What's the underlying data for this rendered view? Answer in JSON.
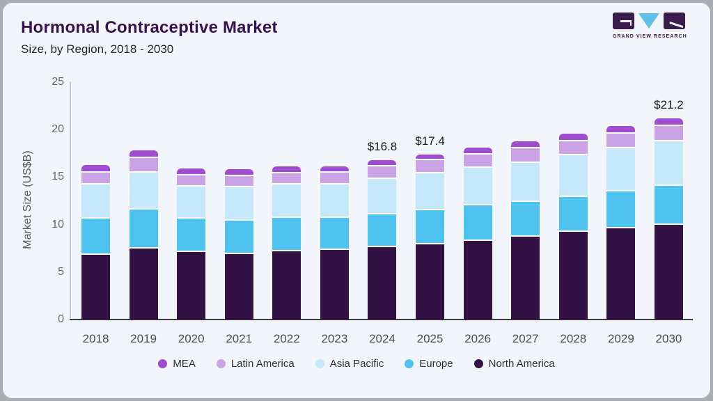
{
  "header": {
    "title": "Hormonal Contraceptive Market",
    "subtitle": "Size, by Region, 2018 - 2030",
    "logo_text": "GRAND VIEW RESEARCH"
  },
  "colors": {
    "card_background": "#f2f6fa",
    "title": "#3a1150",
    "logo_purple": "#3a1b4d",
    "logo_blue": "#5ec1ea",
    "axis_line": "#c6cad0",
    "baseline": "#3b3b42"
  },
  "chart_data": {
    "type": "bar",
    "stacked": true,
    "title": "Hormonal Contraceptive Market",
    "subtitle": "Size, by Region, 2018 - 2030",
    "xlabel": "",
    "ylabel": "Market Size (US$B)",
    "ylim": [
      0,
      25
    ],
    "yticks": [
      0,
      5,
      10,
      15,
      20,
      25
    ],
    "grid": false,
    "legend_position": "bottom",
    "categories": [
      2018,
      2019,
      2020,
      2021,
      2022,
      2023,
      2024,
      2025,
      2026,
      2027,
      2028,
      2029,
      2030
    ],
    "stack_order_bottom_to_top": [
      "North America",
      "Europe",
      "Asia Pacific",
      "Latin America",
      "MEA"
    ],
    "legend_order": [
      "MEA",
      "Latin America",
      "Asia Pacific",
      "Europe",
      "North America"
    ],
    "series": [
      {
        "name": "North America",
        "color": "#321245",
        "values": [
          6.8,
          7.5,
          7.1,
          6.9,
          7.2,
          7.3,
          7.6,
          7.9,
          8.3,
          8.7,
          9.2,
          9.6,
          10.0
        ]
      },
      {
        "name": "Europe",
        "color": "#4fc3ef",
        "values": [
          3.8,
          4.1,
          3.5,
          3.5,
          3.5,
          3.4,
          3.5,
          3.6,
          3.7,
          3.7,
          3.7,
          3.9,
          4.1
        ]
      },
      {
        "name": "Asia Pacific",
        "color": "#c4e7f9",
        "values": [
          3.6,
          3.9,
          3.4,
          3.5,
          3.5,
          3.5,
          3.7,
          3.9,
          4.0,
          4.1,
          4.4,
          4.5,
          4.7
        ]
      },
      {
        "name": "Latin America",
        "color": "#c9a3e6",
        "values": [
          1.3,
          1.5,
          1.2,
          1.2,
          1.2,
          1.3,
          1.3,
          1.4,
          1.4,
          1.5,
          1.5,
          1.6,
          1.6
        ]
      },
      {
        "name": "MEA",
        "color": "#a04cd1",
        "values": [
          0.8,
          0.8,
          0.7,
          0.7,
          0.7,
          0.6,
          0.7,
          0.6,
          0.7,
          0.8,
          0.8,
          0.8,
          0.8
        ]
      }
    ],
    "totals": [
      16.3,
      17.8,
      15.9,
      15.8,
      16.1,
      16.1,
      16.8,
      17.4,
      18.1,
      18.8,
      19.6,
      20.4,
      21.2
    ],
    "bar_labels": {
      "2024": "$16.8",
      "2025": "$17.4",
      "2030": "$21.2"
    }
  }
}
